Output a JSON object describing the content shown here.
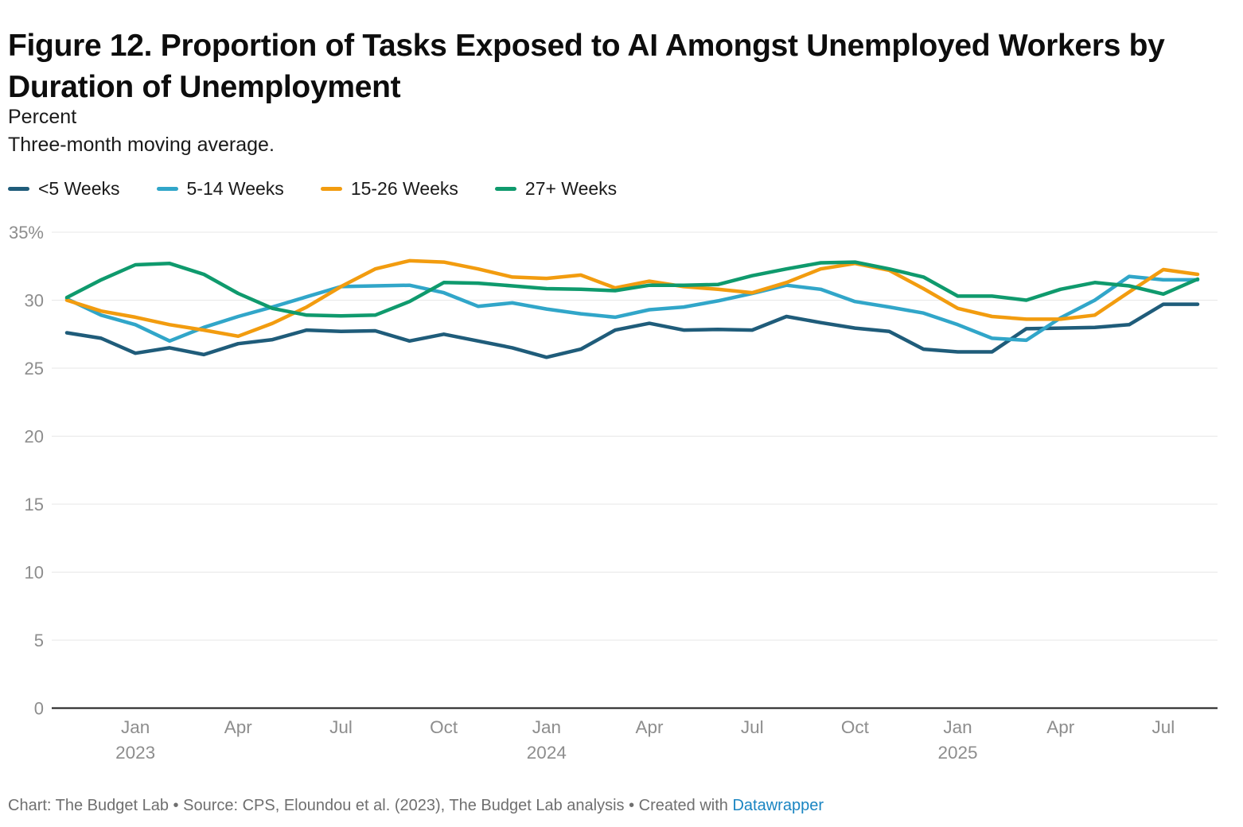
{
  "header": {
    "title": "Figure 12. Proportion of Tasks Exposed to AI Amongst Unemployed Workers by Duration of Unemployment",
    "subtitle_line1": "Percent",
    "subtitle_line2": "Three-month moving average."
  },
  "footer": {
    "text": "Chart: The Budget Lab • Source: CPS, Eloundou et al. (2023), The Budget Lab analysis • Created with ",
    "link_label": "Datawrapper",
    "link_color": "#1a85c2"
  },
  "chart_data": {
    "type": "line",
    "title": "Figure 12. Proportion of Tasks Exposed to AI Amongst Unemployed Workers by Duration of Unemployment",
    "ylabel": "Percent",
    "note": "Three-month moving average.",
    "ylim": [
      0,
      35
    ],
    "grid": "horizontal",
    "legend_position": "top",
    "x_months": [
      "Nov 2022",
      "Dec 2022",
      "Jan 2023",
      "Feb 2023",
      "Mar 2023",
      "Apr 2023",
      "May 2023",
      "Jun 2023",
      "Jul 2023",
      "Aug 2023",
      "Sep 2023",
      "Oct 2023",
      "Nov 2023",
      "Dec 2023",
      "Jan 2024",
      "Feb 2024",
      "Mar 2024",
      "Apr 2024",
      "May 2024",
      "Jun 2024",
      "Jul 2024",
      "Aug 2024",
      "Sep 2024",
      "Oct 2024",
      "Nov 2024",
      "Dec 2024",
      "Jan 2025",
      "Feb 2025",
      "Mar 2025",
      "Apr 2025",
      "May 2025",
      "Jun 2025",
      "Jul 2025",
      "Aug 2025"
    ],
    "x_ticks": [
      {
        "label": "Jan",
        "year": "2023",
        "index": 2
      },
      {
        "label": "Apr",
        "year": "",
        "index": 5
      },
      {
        "label": "Jul",
        "year": "",
        "index": 8
      },
      {
        "label": "Oct",
        "year": "",
        "index": 11
      },
      {
        "label": "Jan",
        "year": "2024",
        "index": 14
      },
      {
        "label": "Apr",
        "year": "",
        "index": 17
      },
      {
        "label": "Jul",
        "year": "",
        "index": 20
      },
      {
        "label": "Oct",
        "year": "",
        "index": 23
      },
      {
        "label": "Jan",
        "year": "2025",
        "index": 26
      },
      {
        "label": "Apr",
        "year": "",
        "index": 29
      },
      {
        "label": "Jul",
        "year": "",
        "index": 32
      }
    ],
    "y_ticks": [
      {
        "value": 35,
        "label": "35%"
      },
      {
        "value": 30,
        "label": "30"
      },
      {
        "value": 25,
        "label": "25"
      },
      {
        "value": 20,
        "label": "20"
      },
      {
        "value": 15,
        "label": "15"
      },
      {
        "value": 10,
        "label": "10"
      },
      {
        "value": 5,
        "label": "5"
      },
      {
        "value": 0,
        "label": "0"
      }
    ],
    "series": [
      {
        "name": "<5 Weeks",
        "color": "#1f5c7a",
        "values": [
          27.6,
          27.2,
          26.1,
          26.5,
          26.0,
          26.8,
          27.1,
          27.8,
          27.7,
          27.75,
          27.0,
          27.5,
          27.0,
          26.5,
          25.8,
          26.4,
          27.8,
          28.3,
          27.8,
          27.85,
          27.8,
          28.8,
          28.35,
          27.95,
          27.7,
          26.4,
          26.2,
          26.2,
          27.9,
          27.95,
          28.0,
          28.2,
          29.7,
          29.7
        ]
      },
      {
        "name": "5-14 Weeks",
        "color": "#31a6c9",
        "values": [
          30.1,
          28.9,
          28.2,
          27.0,
          28.0,
          28.8,
          29.5,
          30.25,
          31.0,
          31.05,
          31.1,
          30.55,
          29.55,
          29.8,
          29.35,
          29.0,
          28.75,
          29.3,
          29.5,
          29.95,
          30.5,
          31.1,
          30.8,
          29.9,
          29.5,
          29.05,
          28.2,
          27.2,
          27.05,
          28.7,
          30.0,
          31.75,
          31.5,
          31.5
        ]
      },
      {
        "name": "15-26 Weeks",
        "color": "#f29c0f",
        "values": [
          30.0,
          29.2,
          28.75,
          28.2,
          27.8,
          27.35,
          28.3,
          29.5,
          31.0,
          32.3,
          32.9,
          32.8,
          32.3,
          31.7,
          31.6,
          31.85,
          30.9,
          31.4,
          31.0,
          30.8,
          30.55,
          31.3,
          32.3,
          32.7,
          32.2,
          30.85,
          29.4,
          28.8,
          28.6,
          28.6,
          28.9,
          30.6,
          32.25,
          31.9
        ]
      },
      {
        "name": "27+ Weeks",
        "color": "#0f9a6d",
        "values": [
          30.2,
          31.5,
          32.6,
          32.7,
          31.9,
          30.5,
          29.4,
          28.9,
          28.85,
          28.9,
          29.9,
          31.3,
          31.25,
          31.05,
          30.85,
          30.8,
          30.7,
          31.1,
          31.1,
          31.15,
          31.8,
          32.3,
          32.75,
          32.8,
          32.3,
          31.7,
          30.3,
          30.3,
          30.0,
          30.8,
          31.3,
          31.05,
          30.45,
          31.55
        ]
      }
    ]
  }
}
